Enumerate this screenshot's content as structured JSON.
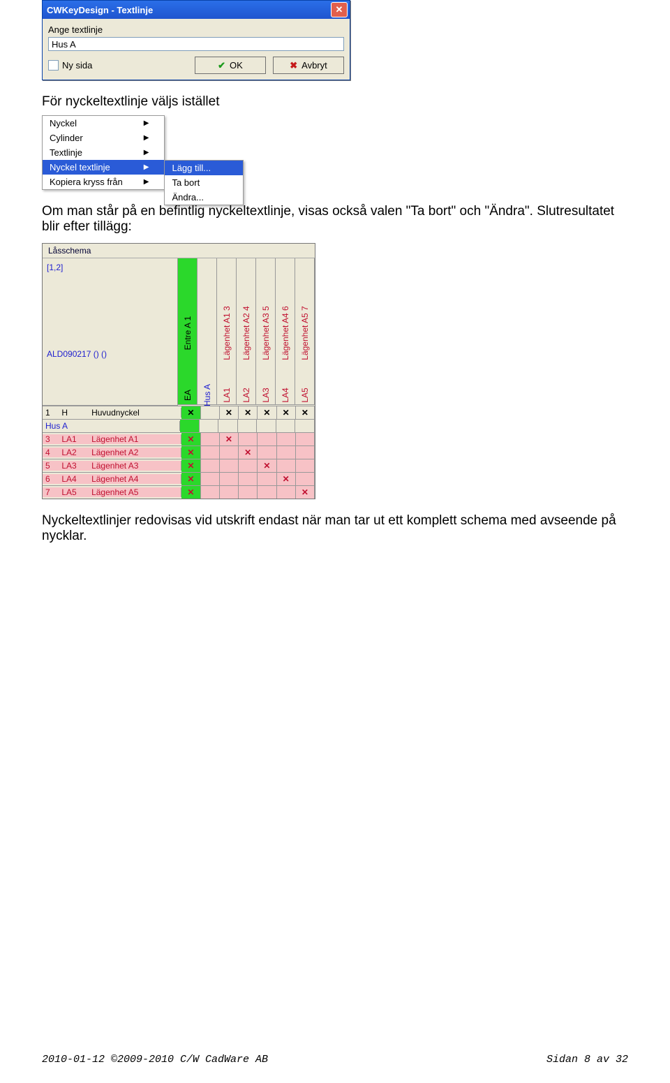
{
  "dialog": {
    "title": "CWKeyDesign - Textlinje",
    "label": "Ange textlinje",
    "value": "Hus A",
    "checkbox": "Ny sida",
    "ok": "OK",
    "cancel": "Avbryt"
  },
  "text": {
    "p1": "För nyckeltextlinje väljs istället",
    "p2": "Om man står på en befintlig nyckeltextlinje, visas också valen \"Ta bort\" och \"Ändra\". Slutresultatet blir efter tillägg:",
    "p3": "Nyckeltextlinjer redovisas vid utskrift endast när man tar ut ett komplett schema med avseende på nycklar."
  },
  "menu": {
    "items": [
      "Nyckel",
      "Cylinder",
      "Textlinje",
      "Nyckel textlinje",
      "Kopiera kryss från"
    ],
    "selected": 3,
    "sub": [
      "Lägg till...",
      "Ta bort",
      "Ändra..."
    ]
  },
  "schema": {
    "tab": "Låsschema",
    "idx": "[1,2]",
    "ald": "ALD090217 () ()",
    "cols": [
      {
        "num": "1",
        "code": "EA",
        "name": "Entre A",
        "green": true
      },
      {
        "num": "",
        "code": "",
        "name": "Hus A",
        "green": false,
        "blank": true
      },
      {
        "num": "3",
        "code": "LA1",
        "name": "Lägenhet A1",
        "green": false
      },
      {
        "num": "4",
        "code": "LA2",
        "name": "Lägenhet A2",
        "green": false
      },
      {
        "num": "5",
        "code": "LA3",
        "name": "Lägenhet A3",
        "green": false
      },
      {
        "num": "6",
        "code": "LA4",
        "name": "Lägenhet A4",
        "green": false
      },
      {
        "num": "7",
        "code": "LA5",
        "name": "Lägenhet A5",
        "green": false
      }
    ],
    "rows": [
      {
        "num": "1",
        "code": "H",
        "name": "Huvudnyckel",
        "X": [
          true,
          false,
          true,
          true,
          true,
          true,
          true
        ],
        "pink": false,
        "red": false
      },
      {
        "husA": "Hus A"
      },
      {
        "num": "3",
        "code": "LA1",
        "name": "Lägenhet A1",
        "X": [
          true,
          false,
          true,
          false,
          false,
          false,
          false
        ],
        "pink": true,
        "red": true
      },
      {
        "num": "4",
        "code": "LA2",
        "name": "Lägenhet A2",
        "X": [
          true,
          false,
          false,
          true,
          false,
          false,
          false
        ],
        "pink": true,
        "red": true
      },
      {
        "num": "5",
        "code": "LA3",
        "name": "Lägenhet A3",
        "X": [
          true,
          false,
          false,
          false,
          true,
          false,
          false
        ],
        "pink": true,
        "red": true
      },
      {
        "num": "6",
        "code": "LA4",
        "name": "Lägenhet A4",
        "X": [
          true,
          false,
          false,
          false,
          false,
          true,
          false
        ],
        "pink": true,
        "red": true
      },
      {
        "num": "7",
        "code": "LA5",
        "name": "Lägenhet A5",
        "X": [
          true,
          false,
          false,
          false,
          false,
          false,
          true
        ],
        "pink": true,
        "red": true
      }
    ]
  },
  "footer": {
    "left": "2010-01-12 ©2009-2010 C/W CadWare AB",
    "right": "Sidan 8 av 32"
  }
}
